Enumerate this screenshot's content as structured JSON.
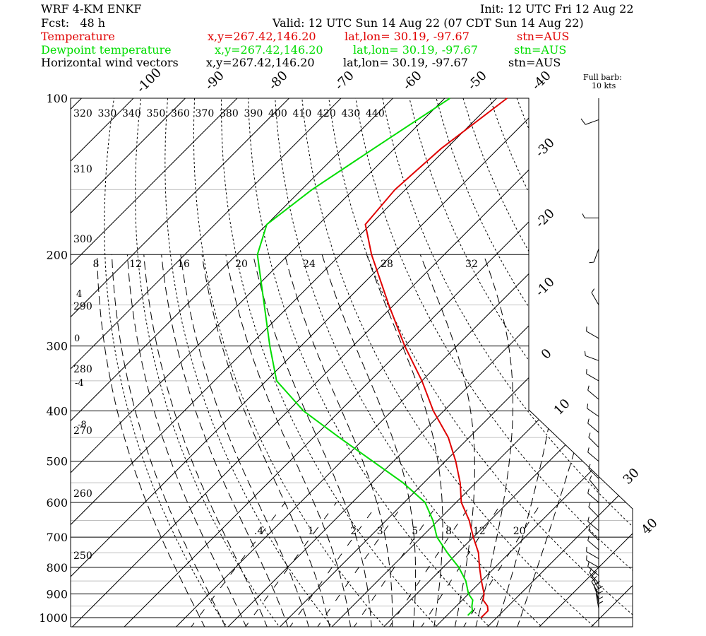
{
  "header": {
    "line1_left": "WRF 4-KM ENKF",
    "line1_right": "Init: 12 UTC Fri 12 Aug 22",
    "line2_left": "Fcst:   48 h",
    "line2_right": "Valid: 12 UTC Sun 14 Aug 22 (07 CDT Sun 14 Aug 22)",
    "series_lines": [
      {
        "name": "Temperature",
        "coords": "x,y=267.42,146.20",
        "latlon": "lat,lon= 30.19, -97.67",
        "stn": "stn=AUS",
        "color": "#e00000"
      },
      {
        "name": "Dewpoint temperature",
        "coords": "x,y=267.42,146.20",
        "latlon": "lat,lon= 30.19, -97.67",
        "stn": "stn=AUS",
        "color": "#00dd00"
      },
      {
        "name": "Horizontal wind vectors",
        "coords": "x,y=267.42,146.20",
        "latlon": "lat,lon= 30.19, -97.67",
        "stn": "stn=AUS",
        "color": "#000000"
      }
    ],
    "barb_note_1": "Full barb:",
    "barb_note_2": "10 kts"
  },
  "chart_data": {
    "type": "line",
    "subtype": "skew-T log-P",
    "pressure_ticks": [
      "100",
      "200",
      "300",
      "400",
      "500",
      "600",
      "700",
      "800",
      "900",
      "1000"
    ],
    "temperature_ticks_top": [
      "-100",
      "-90",
      "-80",
      "-70",
      "-60",
      "-50",
      "-40"
    ],
    "temperature_ticks_right": [
      "-30",
      "-20",
      "-10",
      "0",
      "10",
      "30",
      "40"
    ],
    "theta_labels_top": [
      "320",
      "330",
      "340",
      "350",
      "360",
      "370",
      "380",
      "390",
      "400",
      "410",
      "420",
      "430",
      "440"
    ],
    "theta_labels_left": [
      "310",
      "300",
      "290",
      "280",
      "270",
      "260",
      "250"
    ],
    "mixing_ratio_labels": [
      ".4",
      "1",
      "2",
      "3",
      "5",
      "8",
      "12",
      "20"
    ],
    "wetbulb_labels_left": [
      "4",
      "0",
      "-4",
      "-8"
    ],
    "theta_e_labels": [
      "8",
      "12",
      "16",
      "20",
      "24",
      "28",
      "32"
    ],
    "series": [
      {
        "name": "Temperature",
        "color": "#e00000",
        "points": [
          [
            100,
            -68
          ],
          [
            125,
            -71
          ],
          [
            150,
            -72
          ],
          [
            175,
            -71
          ],
          [
            200,
            -64
          ],
          [
            250,
            -51
          ],
          [
            300,
            -40
          ],
          [
            350,
            -30
          ],
          [
            400,
            -22
          ],
          [
            450,
            -14
          ],
          [
            500,
            -8
          ],
          [
            550,
            -3
          ],
          [
            600,
            1
          ],
          [
            650,
            6
          ],
          [
            700,
            10
          ],
          [
            750,
            14
          ],
          [
            800,
            17
          ],
          [
            850,
            20
          ],
          [
            900,
            23
          ],
          [
            925,
            24
          ],
          [
            950,
            26
          ],
          [
            970,
            27
          ],
          [
            1000,
            27
          ]
        ]
      },
      {
        "name": "Dewpoint temperature",
        "color": "#00dd00",
        "points": [
          [
            100,
            -79
          ],
          [
            125,
            -84
          ],
          [
            150,
            -88
          ],
          [
            175,
            -90
          ],
          [
            200,
            -86
          ],
          [
            250,
            -75
          ],
          [
            300,
            -66
          ],
          [
            350,
            -58
          ],
          [
            400,
            -47
          ],
          [
            450,
            -35
          ],
          [
            500,
            -24
          ],
          [
            550,
            -14
          ],
          [
            600,
            -6
          ],
          [
            650,
            -1
          ],
          [
            700,
            3
          ],
          [
            750,
            8
          ],
          [
            800,
            13
          ],
          [
            850,
            17
          ],
          [
            900,
            20
          ],
          [
            925,
            22
          ],
          [
            950,
            23
          ],
          [
            970,
            24
          ],
          [
            990,
            24
          ]
        ]
      }
    ],
    "wind_barbs": [
      {
        "p": 110,
        "dir": 250,
        "kt": 10
      },
      {
        "p": 170,
        "dir": 270,
        "kt": 5
      },
      {
        "p": 195,
        "dir": 200,
        "kt": 5
      },
      {
        "p": 250,
        "dir": 330,
        "kt": 5
      },
      {
        "p": 290,
        "dir": 300,
        "kt": 5
      },
      {
        "p": 320,
        "dir": 290,
        "kt": 5
      },
      {
        "p": 350,
        "dir": 300,
        "kt": 5
      },
      {
        "p": 380,
        "dir": 310,
        "kt": 5
      },
      {
        "p": 410,
        "dir": 305,
        "kt": 5
      },
      {
        "p": 440,
        "dir": 310,
        "kt": 5
      },
      {
        "p": 470,
        "dir": 315,
        "kt": 5
      },
      {
        "p": 500,
        "dir": 310,
        "kt": 5
      },
      {
        "p": 540,
        "dir": 315,
        "kt": 5
      },
      {
        "p": 570,
        "dir": 320,
        "kt": 5
      },
      {
        "p": 600,
        "dir": 310,
        "kt": 5
      },
      {
        "p": 640,
        "dir": 315,
        "kt": 5
      },
      {
        "p": 680,
        "dir": 310,
        "kt": 5
      },
      {
        "p": 710,
        "dir": 315,
        "kt": 5
      },
      {
        "p": 740,
        "dir": 310,
        "kt": 5
      },
      {
        "p": 770,
        "dir": 300,
        "kt": 5
      },
      {
        "p": 800,
        "dir": 300,
        "kt": 5
      },
      {
        "p": 830,
        "dir": 310,
        "kt": 5
      },
      {
        "p": 860,
        "dir": 320,
        "kt": 5
      },
      {
        "p": 880,
        "dir": 330,
        "kt": 10
      },
      {
        "p": 900,
        "dir": 330,
        "kt": 10
      },
      {
        "p": 920,
        "dir": 340,
        "kt": 10
      },
      {
        "p": 940,
        "dir": 350,
        "kt": 10
      },
      {
        "p": 960,
        "dir": 350,
        "kt": 10
      },
      {
        "p": 980,
        "dir": 0,
        "kt": 5
      },
      {
        "p": 1000,
        "dir": 0,
        "kt": 5
      }
    ],
    "xlabel": "",
    "ylabel": "",
    "grid": true
  }
}
